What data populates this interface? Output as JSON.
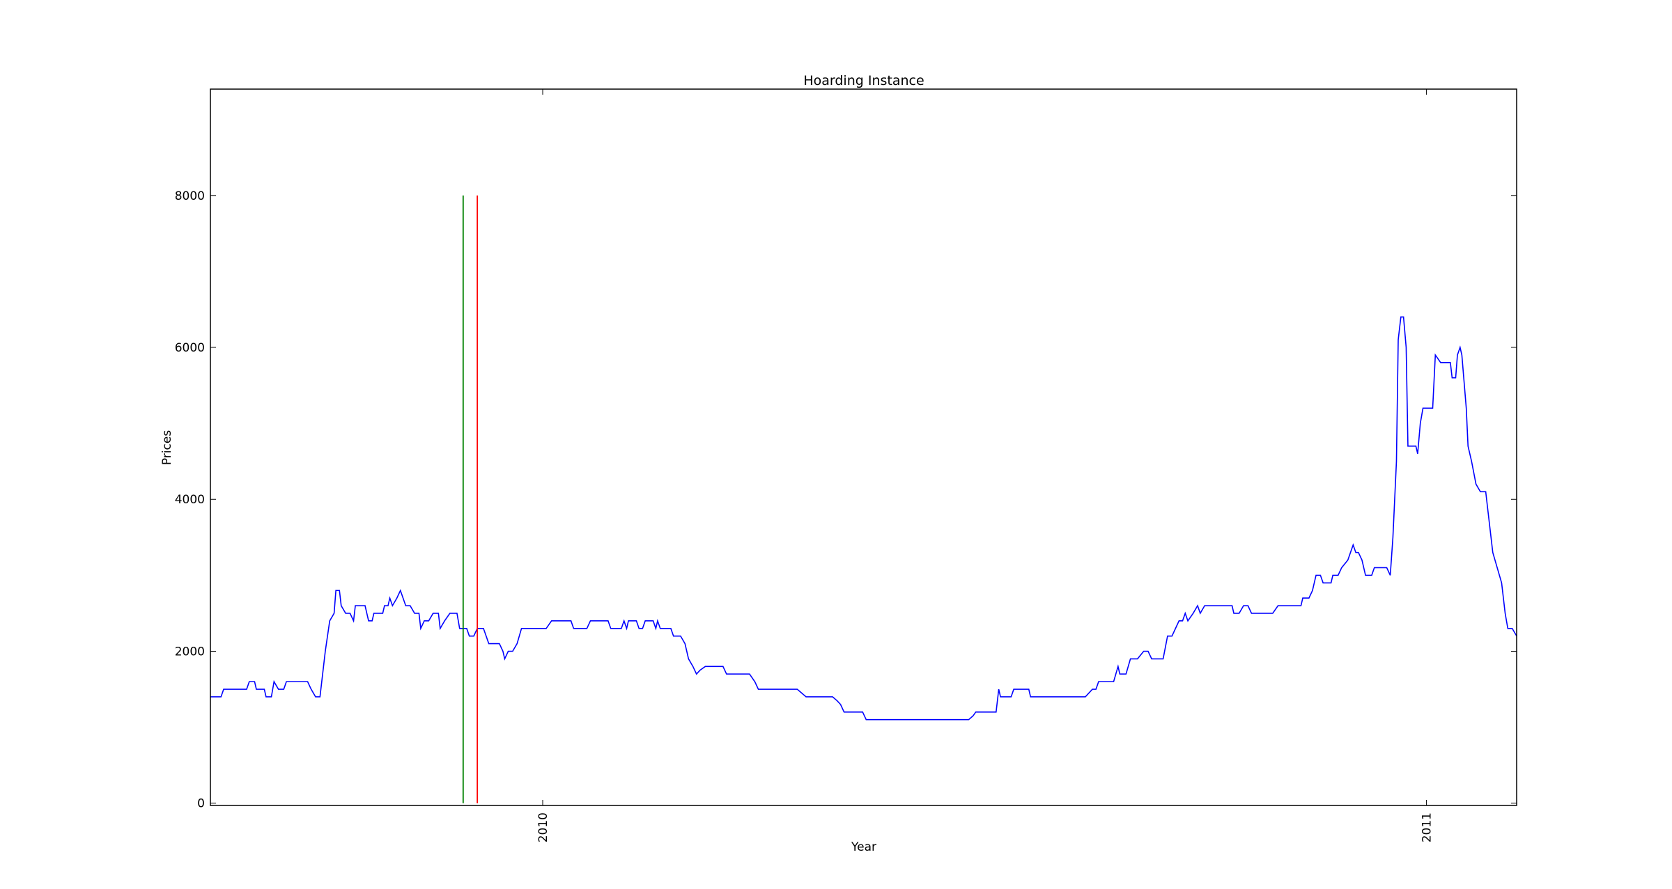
{
  "chart_data": {
    "type": "line",
    "title": "Hoarding Instance",
    "xlabel": "Year",
    "ylabel": "Prices",
    "x": [
      2009.624,
      2009.636,
      2009.639,
      2009.665,
      2009.668,
      2009.674,
      2009.676,
      2009.685,
      2009.687,
      2009.693,
      2009.696,
      2009.701,
      2009.707,
      2009.71,
      2009.734,
      2009.738,
      2009.743,
      2009.748,
      2009.754,
      2009.759,
      2009.764,
      2009.766,
      2009.77,
      2009.772,
      2009.777,
      2009.782,
      2009.786,
      2009.788,
      2009.799,
      2009.803,
      2009.807,
      2009.809,
      2009.819,
      2009.821,
      2009.825,
      2009.827,
      2009.83,
      2009.835,
      2009.839,
      2009.842,
      2009.845,
      2009.85,
      2009.855,
      2009.86,
      2009.862,
      2009.866,
      2009.871,
      2009.876,
      2009.882,
      2009.884,
      2009.889,
      2009.895,
      2009.903,
      2009.906,
      2009.914,
      2009.917,
      2009.922,
      2009.926,
      2009.933,
      2009.939,
      2009.951,
      2009.955,
      2009.957,
      2009.961,
      2009.966,
      2009.971,
      2009.976,
      2010.004,
      2010.01,
      2010.032,
      2010.035,
      2010.05,
      2010.054,
      2010.074,
      2010.077,
      2010.089,
      2010.092,
      2010.095,
      2010.097,
      2010.106,
      2010.109,
      2010.113,
      2010.116,
      2010.125,
      2010.128,
      2010.13,
      2010.133,
      2010.145,
      2010.148,
      2010.156,
      2010.161,
      2010.165,
      2010.17,
      2010.174,
      2010.178,
      2010.184,
      2010.204,
      2010.208,
      2010.234,
      2010.24,
      2010.244,
      2010.288,
      2010.293,
      2010.298,
      2010.328,
      2010.333,
      2010.337,
      2010.341,
      2010.362,
      2010.366,
      2010.482,
      2010.487,
      2010.49,
      2010.513,
      2010.516,
      2010.518,
      2010.53,
      2010.533,
      2010.55,
      2010.552,
      2010.614,
      2010.622,
      2010.626,
      2010.629,
      2010.646,
      2010.651,
      2010.653,
      2010.66,
      2010.665,
      2010.673,
      2010.68,
      2010.685,
      2010.689,
      2010.702,
      2010.707,
      2010.712,
      2010.716,
      2010.72,
      2010.724,
      2010.727,
      2010.73,
      2010.736,
      2010.741,
      2010.744,
      2010.749,
      2010.78,
      2010.782,
      2010.788,
      2010.793,
      2010.798,
      2010.802,
      2010.826,
      2010.832,
      2010.858,
      2010.86,
      2010.867,
      2010.871,
      2010.875,
      2010.88,
      2010.883,
      2010.892,
      2010.894,
      2010.9,
      2010.904,
      2010.911,
      2010.917,
      2010.92,
      2010.923,
      2010.927,
      2010.931,
      2010.938,
      2010.941,
      2010.955,
      2010.959,
      2010.962,
      2010.966,
      2010.968,
      2010.971,
      2010.974,
      2010.977,
      2010.979,
      2010.988,
      2010.99,
      2010.993,
      2010.996,
      2011.007,
      2011.01,
      2011.016,
      2011.027,
      2011.029,
      2011.033,
      2011.035,
      2011.038,
      2011.04,
      2011.045,
      2011.047,
      2011.051,
      2011.056,
      2011.061,
      2011.067,
      2011.07,
      2011.075,
      2011.08,
      2011.085,
      2011.089,
      2011.092,
      2011.097,
      2011.102
    ],
    "values": [
      1400,
      1400,
      1500,
      1500,
      1600,
      1600,
      1500,
      1500,
      1400,
      1400,
      1600,
      1500,
      1500,
      1600,
      1600,
      1500,
      1400,
      1400,
      2000,
      2400,
      2500,
      2800,
      2800,
      2600,
      2500,
      2500,
      2400,
      2600,
      2600,
      2400,
      2400,
      2500,
      2500,
      2600,
      2600,
      2700,
      2600,
      2700,
      2800,
      2700,
      2600,
      2600,
      2500,
      2500,
      2300,
      2400,
      2400,
      2500,
      2500,
      2300,
      2400,
      2500,
      2500,
      2300,
      2300,
      2200,
      2200,
      2300,
      2300,
      2100,
      2100,
      2000,
      1900,
      2000,
      2000,
      2100,
      2300,
      2300,
      2400,
      2400,
      2300,
      2300,
      2400,
      2400,
      2300,
      2300,
      2400,
      2300,
      2400,
      2400,
      2300,
      2300,
      2400,
      2400,
      2300,
      2400,
      2300,
      2300,
      2200,
      2200,
      2100,
      1900,
      1800,
      1700,
      1750,
      1800,
      1800,
      1700,
      1700,
      1600,
      1500,
      1500,
      1450,
      1400,
      1400,
      1350,
      1300,
      1200,
      1200,
      1100,
      1100,
      1150,
      1200,
      1200,
      1500,
      1400,
      1400,
      1500,
      1500,
      1400,
      1400,
      1500,
      1500,
      1600,
      1600,
      1800,
      1700,
      1700,
      1900,
      1900,
      2000,
      2000,
      1900,
      1900,
      2200,
      2200,
      2300,
      2400,
      2400,
      2500,
      2400,
      2500,
      2600,
      2500,
      2600,
      2600,
      2500,
      2500,
      2600,
      2600,
      2500,
      2500,
      2600,
      2600,
      2700,
      2700,
      2800,
      3000,
      3000,
      2900,
      2900,
      3000,
      3000,
      3100,
      3200,
      3400,
      3300,
      3300,
      3200,
      3000,
      3000,
      3100,
      3100,
      3000,
      3500,
      4500,
      6100,
      6400,
      6400,
      6000,
      4700,
      4700,
      4600,
      5000,
      5200,
      5200,
      5900,
      5800,
      5800,
      5600,
      5600,
      5900,
      6000,
      5900,
      5200,
      4700,
      4500,
      4200,
      4100,
      4100,
      3800,
      3300,
      3100,
      2900,
      2500,
      2300,
      2300,
      2200
    ],
    "color": "#0000ff",
    "vlines": [
      {
        "x": 2009.91,
        "ymin": 0,
        "ymax": 8000,
        "color": "#008000"
      },
      {
        "x": 2009.926,
        "ymin": 0,
        "ymax": 8000,
        "color": "#ff0000"
      }
    ],
    "xlim": [
      2009.624,
      2011.102
    ],
    "xticks": [
      2010,
      2011
    ],
    "ylim": [
      -30,
      9400
    ],
    "yticks": [
      0,
      2000,
      4000,
      6000,
      8000
    ],
    "grid": false
  }
}
